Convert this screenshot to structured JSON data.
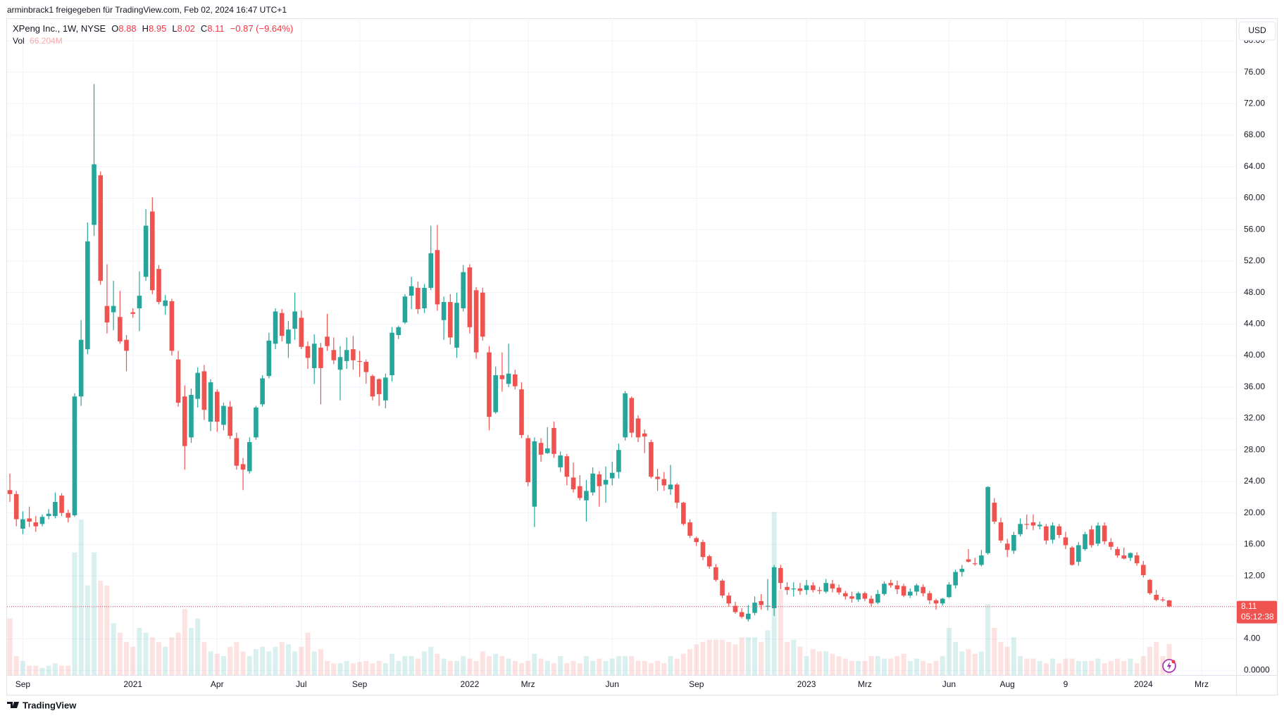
{
  "header": {
    "attribution": "arminbrack1 freigegeben für TradingView.com, Feb 02, 2024 16:47 UTC+1",
    "symbol": "XPeng Inc., 1W, NYSE",
    "ohlc_letters": [
      "O",
      "H",
      "L",
      "C"
    ],
    "change": "−0.87 (−9.64%)",
    "volume_title": "Vol",
    "volume_value": "66.204M",
    "currency": "USD",
    "countdown": "05:12:38",
    "brand": "TradingView"
  },
  "chart_data": {
    "type": "candlestick",
    "categories": [
      null,
      null,
      "Sep",
      null,
      null,
      null,
      null,
      null,
      null,
      null,
      null,
      null,
      null,
      null,
      null,
      null,
      null,
      null,
      null,
      "2021",
      null,
      null,
      null,
      null,
      null,
      null,
      null,
      null,
      null,
      null,
      null,
      null,
      "Apr",
      null,
      null,
      null,
      null,
      null,
      null,
      null,
      null,
      null,
      null,
      null,
      null,
      "Jul",
      null,
      null,
      null,
      null,
      null,
      null,
      null,
      null,
      "Sep",
      null,
      null,
      null,
      null,
      null,
      null,
      null,
      null,
      null,
      null,
      null,
      null,
      null,
      null,
      null,
      null,
      "2022",
      null,
      null,
      null,
      null,
      null,
      null,
      null,
      null,
      "Mrz",
      null,
      null,
      null,
      null,
      null,
      null,
      null,
      null,
      null,
      null,
      null,
      null,
      "Jun",
      null,
      null,
      null,
      null,
      null,
      null,
      null,
      null,
      null,
      null,
      null,
      null,
      "Sep",
      null,
      null,
      null,
      null,
      null,
      null,
      null,
      null,
      null,
      null,
      null,
      null,
      null,
      null,
      null,
      null,
      "2023",
      null,
      null,
      null,
      null,
      null,
      null,
      null,
      null,
      "Mrz",
      null,
      null,
      null,
      null,
      null,
      null,
      null,
      null,
      null,
      null,
      null,
      null,
      "Jun",
      null,
      null,
      null,
      null,
      null,
      null,
      null,
      null,
      "Aug",
      null,
      null,
      null,
      null,
      null,
      null,
      null,
      null,
      "9",
      null,
      null,
      null,
      null,
      null,
      null,
      null,
      null,
      null,
      null,
      null,
      "2024",
      null,
      null,
      null,
      null,
      null,
      null,
      null,
      null,
      "Mrz"
    ],
    "open": [
      22.9,
      22.4,
      18.0,
      19.3,
      18.8,
      18.6,
      19.6,
      19.6,
      22.2,
      20.0,
      19.7,
      34.8,
      40.8,
      56.6,
      62.9,
      46.3,
      45.5,
      44.9,
      42.0,
      45.5,
      46.0,
      50.0,
      58.3,
      51.0,
      46.3,
      46.9,
      39.5,
      34.8,
      29.6,
      34.5,
      38.0,
      31.6,
      35.4,
      31.2,
      33.5,
      29.5,
      26.2,
      25.3,
      29.6,
      33.8,
      37.4,
      41.5,
      45.4,
      41.5,
      43.4,
      44.8,
      41.2,
      38.4,
      41.0,
      42.4,
      40.7,
      38.2,
      39.3,
      40.8,
      39.3,
      39.2,
      37.4,
      37.0,
      34.3,
      37.5,
      42.6,
      44.2,
      47.6,
      48.6,
      46.0,
      48.6,
      53.4,
      44.5,
      46.8,
      41.0,
      46.0,
      51.2,
      48.3,
      48.0,
      40.4,
      32.8,
      37.5,
      36.4,
      37.6,
      35.7,
      29.5,
      20.8,
      28.9,
      27.6,
      30.8,
      25.8,
      27.2,
      24.5,
      23.4,
      21.6,
      22.6,
      24.9,
      23.6,
      24.4,
      25.2,
      29.6,
      34.6,
      32.0,
      30.1,
      29.0,
      24.6,
      24.3,
      23.0,
      23.6,
      21.3,
      18.8,
      16.8,
      16.3,
      14.5,
      13.1,
      11.4,
      9.5,
      8.2,
      7.4,
      6.5,
      7.3,
      8.8,
      8.1,
      7.9,
      13.0,
      10.6,
      10.3,
      10.4,
      10.2,
      10.8,
      10.2,
      10.0,
      11.0,
      10.5,
      9.8,
      9.4,
      9.0,
      9.8,
      9.1,
      8.6,
      9.7,
      11.1,
      10.8,
      10.7,
      9.5,
      10.0,
      10.6,
      9.8,
      8.9,
      8.5,
      9.3,
      10.8,
      12.5,
      14.1,
      13.6,
      13.4,
      14.9,
      21.3,
      18.8,
      16.1,
      15.2,
      17.3,
      18.6,
      18.8,
      18.3,
      18.3,
      16.6,
      18.3,
      16.9,
      15.6,
      13.8,
      15.4,
      17.9,
      16.1,
      18.4,
      16.3,
      15.4,
      14.6,
      14.3,
      14.6,
      13.4,
      11.5,
      9.6,
      9.0,
      8.88,
      null,
      null,
      null,
      null,
      null
    ],
    "high": [
      25.0,
      22.8,
      20.2,
      20.8,
      19.6,
      19.8,
      20.5,
      22.6,
      22.5,
      20.4,
      35.2,
      44.5,
      56.9,
      74.5,
      63.4,
      51.6,
      49.5,
      48.2,
      42.6,
      46.0,
      50.7,
      58.6,
      60.1,
      51.5,
      47.7,
      47.2,
      40.6,
      36.2,
      35.8,
      38.5,
      38.8,
      37.0,
      35.7,
      34.0,
      34.2,
      30.2,
      27.0,
      29.6,
      33.6,
      37.5,
      42.9,
      46.0,
      45.9,
      44.4,
      48.0,
      45.7,
      41.8,
      42.7,
      41.6,
      45.3,
      42.3,
      41.2,
      42.3,
      42.5,
      40.6,
      39.5,
      37.6,
      37.1,
      37.7,
      43.6,
      43.8,
      47.8,
      50.0,
      49.4,
      49.1,
      56.5,
      56.6,
      47.5,
      47.8,
      48.0,
      51.5,
      51.6,
      48.7,
      48.6,
      41.2,
      38.6,
      40.4,
      41.5,
      38.2,
      36.6,
      29.9,
      29.6,
      29.5,
      30.9,
      31.6,
      27.8,
      27.5,
      26.4,
      24.8,
      24.2,
      25.8,
      25.3,
      25.9,
      26.5,
      28.8,
      35.5,
      34.8,
      32.4,
      30.6,
      29.3,
      25.6,
      25.2,
      26.1,
      23.8,
      21.4,
      19.2,
      17.0,
      16.6,
      14.7,
      13.5,
      11.6,
      9.9,
      8.7,
      7.9,
      8.3,
      9.4,
      9.7,
      11.6,
      13.4,
      13.4,
      11.2,
      11.2,
      11.1,
      11.5,
      11.2,
      10.6,
      11.6,
      11.5,
      10.9,
      10.1,
      10.0,
      10.0,
      10.0,
      9.5,
      10.2,
      11.3,
      11.5,
      11.4,
      11.0,
      10.4,
      11.0,
      10.9,
      10.1,
      9.1,
      9.2,
      11.2,
      12.8,
      13.4,
      15.4,
      14.3,
      15.3,
      23.4,
      21.9,
      19.4,
      16.7,
      17.6,
      19.3,
      19.8,
      19.8,
      18.9,
      18.6,
      18.8,
      18.6,
      17.6,
      15.8,
      16.3,
      17.6,
      18.4,
      18.8,
      18.8,
      16.8,
      15.7,
      15.6,
      15.0,
      15.0,
      13.9,
      11.6,
      10.2,
      9.3,
      8.95,
      null,
      null,
      null,
      null,
      null
    ],
    "low": [
      21.4,
      18.3,
      17.3,
      18.2,
      17.6,
      18.3,
      19.2,
      19.3,
      19.6,
      18.8,
      19.5,
      33.6,
      40.2,
      55.2,
      49.0,
      42.8,
      43.2,
      41.5,
      38.0,
      44.8,
      43.1,
      49.5,
      47.8,
      46.5,
      45.2,
      40.0,
      33.5,
      25.5,
      28.9,
      33.4,
      31.8,
      30.4,
      30.3,
      30.5,
      29.4,
      25.5,
      22.9,
      25.0,
      29.3,
      33.5,
      37.1,
      40.8,
      41.8,
      39.7,
      42.0,
      40.8,
      38.3,
      36.4,
      33.8,
      40.6,
      38.9,
      34.3,
      38.3,
      38.2,
      37.3,
      36.4,
      34.3,
      33.6,
      33.3,
      36.7,
      42.1,
      44.0,
      45.9,
      45.3,
      45.4,
      48.3,
      45.7,
      42.0,
      41.4,
      39.7,
      45.6,
      42.8,
      39.6,
      41.9,
      30.5,
      32.6,
      35.4,
      36.0,
      35.7,
      29.5,
      23.4,
      18.2,
      26.5,
      27.5,
      27.0,
      25.2,
      23.5,
      22.6,
      21.6,
      18.9,
      22.2,
      20.8,
      21.3,
      23.5,
      24.4,
      29.2,
      29.6,
      29.0,
      27.6,
      24.4,
      22.8,
      22.8,
      22.3,
      20.6,
      18.4,
      16.8,
      15.8,
      14.0,
      12.9,
      11.3,
      9.2,
      8.1,
      7.2,
      6.6,
      6.2,
      7.0,
      7.7,
      7.6,
      6.9,
      10.3,
      9.6,
      9.4,
      9.6,
      9.6,
      9.9,
      9.7,
      9.8,
      9.9,
      9.6,
      9.0,
      8.6,
      8.7,
      8.8,
      8.1,
      8.4,
      9.5,
      10.5,
      9.7,
      9.3,
      9.2,
      9.5,
      9.4,
      8.4,
      7.7,
      8.2,
      9.2,
      10.4,
      11.9,
      13.7,
      13.3,
      13.2,
      14.7,
      18.6,
      16.2,
      14.4,
      14.8,
      17.0,
      17.9,
      17.8,
      17.9,
      16.0,
      16.1,
      16.8,
      15.4,
      13.3,
      13.3,
      15.2,
      15.6,
      15.8,
      16.0,
      15.3,
      14.3,
      14.1,
      13.9,
      13.3,
      11.8,
      9.6,
      8.8,
      8.7,
      8.02,
      null,
      null,
      null,
      null,
      null
    ],
    "close": [
      22.4,
      19.2,
      19.2,
      18.9,
      18.3,
      19.5,
      19.9,
      21.4,
      20.0,
      19.4,
      34.8,
      42.0,
      54.5,
      64.3,
      49.5,
      44.2,
      46.3,
      41.8,
      40.6,
      45.3,
      47.6,
      56.5,
      48.3,
      46.8,
      47.0,
      40.6,
      34.0,
      28.5,
      35.0,
      37.8,
      33.1,
      36.6,
      31.6,
      33.6,
      29.8,
      26.0,
      25.5,
      29.0,
      33.4,
      37.1,
      41.9,
      45.6,
      42.5,
      43.3,
      45.6,
      41.1,
      39.7,
      41.5,
      38.4,
      41.2,
      39.4,
      39.8,
      40.7,
      39.4,
      39.2,
      37.9,
      34.8,
      35.1,
      37.2,
      42.9,
      43.6,
      47.5,
      48.8,
      45.9,
      48.6,
      53.0,
      46.5,
      46.8,
      42.3,
      46.7,
      50.6,
      43.6,
      40.4,
      42.4,
      32.2,
      37.5,
      37.0,
      37.7,
      36.1,
      29.9,
      23.9,
      29.1,
      27.4,
      28.2,
      27.5,
      27.3,
      24.6,
      23.0,
      21.9,
      22.8,
      25.0,
      23.4,
      24.2,
      25.1,
      28.0,
      35.2,
      30.2,
      29.6,
      29.7,
      24.6,
      24.3,
      23.5,
      23.6,
      21.3,
      18.6,
      17.1,
      16.3,
      14.4,
      13.2,
      11.5,
      9.5,
      8.5,
      7.4,
      6.8,
      7.2,
      8.6,
      8.3,
      8.2,
      13.1,
      11.1,
      10.2,
      10.4,
      10.1,
      10.8,
      10.2,
      10.1,
      11.1,
      10.4,
      9.9,
      9.4,
      9.1,
      9.8,
      9.1,
      8.5,
      9.7,
      11.0,
      10.8,
      10.3,
      9.5,
      10.0,
      10.8,
      9.8,
      8.9,
      8.5,
      9.1,
      10.9,
      12.5,
      12.9,
      13.8,
      13.5,
      14.6,
      23.3,
      18.9,
      16.5,
      15.3,
      17.2,
      18.6,
      18.5,
      18.4,
      18.5,
      16.5,
      18.4,
      17.2,
      15.9,
      13.4,
      15.9,
      17.3,
      15.9,
      18.4,
      16.4,
      15.7,
      14.6,
      14.2,
      14.9,
      13.6,
      12.1,
      9.8,
      8.95,
      8.98,
      8.11,
      null,
      null,
      null,
      null,
      null
    ],
    "volume": [
      120,
      40,
      30,
      20,
      20,
      15,
      20,
      25,
      20,
      20,
      260,
      330,
      190,
      260,
      200,
      190,
      110,
      90,
      70,
      60,
      100,
      90,
      80,
      70,
      60,
      80,
      90,
      140,
      100,
      120,
      70,
      50,
      45,
      40,
      60,
      70,
      50,
      40,
      55,
      60,
      50,
      60,
      70,
      65,
      50,
      60,
      90,
      50,
      55,
      30,
      25,
      25,
      30,
      25,
      28,
      30,
      25,
      30,
      25,
      45,
      30,
      40,
      40,
      35,
      50,
      60,
      45,
      35,
      30,
      30,
      40,
      35,
      30,
      50,
      40,
      45,
      40,
      35,
      30,
      25,
      30,
      45,
      35,
      30,
      25,
      40,
      25,
      30,
      25,
      40,
      30,
      35,
      30,
      35,
      40,
      40,
      40,
      30,
      30,
      25,
      30,
      25,
      40,
      35,
      45,
      55,
      65,
      70,
      75,
      75,
      75,
      70,
      65,
      80,
      80,
      80,
      70,
      95,
      346,
      180,
      70,
      75,
      60,
      40,
      55,
      50,
      50,
      45,
      40,
      35,
      30,
      30,
      30,
      40,
      40,
      35,
      35,
      40,
      45,
      30,
      35,
      30,
      25,
      30,
      40,
      100,
      70,
      50,
      55,
      45,
      50,
      150,
      100,
      70,
      60,
      80,
      40,
      35,
      35,
      30,
      25,
      35,
      25,
      35,
      35,
      30,
      30,
      30,
      35,
      25,
      30,
      35,
      30,
      35,
      25,
      40,
      60,
      70,
      40,
      66.204,
      null,
      null,
      null,
      null,
      null
    ],
    "ylim": [
      -0.6,
      82.85
    ],
    "yticks": [
      {
        "value": 0,
        "label": "0.0000"
      },
      {
        "value": 4,
        "label": "4.00"
      },
      {
        "value": 8,
        "label": "8.00"
      },
      {
        "value": 12,
        "label": "12.00"
      },
      {
        "value": 16,
        "label": "16.00"
      },
      {
        "value": 20,
        "label": "20.00"
      },
      {
        "value": 24,
        "label": "24.00"
      },
      {
        "value": 28,
        "label": "28.00"
      },
      {
        "value": 32,
        "label": "32.00"
      },
      {
        "value": 36,
        "label": "36.00"
      },
      {
        "value": 40,
        "label": "40.00"
      },
      {
        "value": 44,
        "label": "44.00"
      },
      {
        "value": 48,
        "label": "48.00"
      },
      {
        "value": 52,
        "label": "52.00"
      },
      {
        "value": 56,
        "label": "56.00"
      },
      {
        "value": 60,
        "label": "60.00"
      },
      {
        "value": 64,
        "label": "64.00"
      },
      {
        "value": 68,
        "label": "68.00"
      },
      {
        "value": 72,
        "label": "72.00"
      },
      {
        "value": 76,
        "label": "76.00"
      },
      {
        "value": 80,
        "label": "80.00"
      }
    ],
    "volume_ylim": [
      0,
      400
    ],
    "up_color": "#26a69a",
    "down_color": "#ef5350",
    "grid": true
  }
}
